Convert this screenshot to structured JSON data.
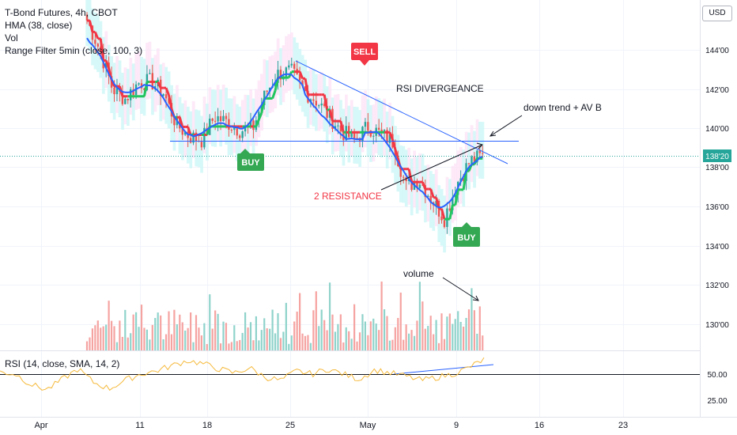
{
  "legend": {
    "symbol": "T-Bond Futures, 4h, CBOT",
    "hma": "HMA (38, close)",
    "vol": "Vol",
    "range_filter": "Range Filter  5min (close, 100, 3)"
  },
  "currency_button": "USD",
  "rsi_legend": "RSI (14, close, SMA, 14, 2)",
  "colors": {
    "up": "#26a69a",
    "down": "#ef5350",
    "hma": "#2962ff",
    "filter_down": "#f23645",
    "filter_up": "#22c55e",
    "band_cyan": "#cdf6f6",
    "band_pink": "#fce4f6",
    "rsi": "#f5b93a",
    "annotation": "#f23645",
    "buy": "#34a853"
  },
  "annotations": {
    "sell": "SELL",
    "buy1": "BUY",
    "buy2": "BUY",
    "rsi_divergence": "RSI DIVERGEANCE",
    "down_trend": "down trend + AV B",
    "resistance": "2 RESISTANCE",
    "volume": "volume"
  },
  "chart_data": {
    "type": "candlestick",
    "symbol": "T-Bond Futures",
    "timeframe": "4h",
    "exchange": "CBOT",
    "last_price": "138'20",
    "y_ticks": [
      "144'00",
      "142'00",
      "140'00",
      "138'00",
      "136'00",
      "134'00",
      "132'00",
      "130'00"
    ],
    "rsi_ticks": [
      "50.00",
      "25.00"
    ],
    "x_ticks": [
      "Apr",
      "11",
      "18",
      "25",
      "May",
      "9",
      "16",
      "23"
    ],
    "horizontal_line": "139'10",
    "close_path": [
      145.5,
      144.0,
      142.0,
      141.5,
      142.3,
      142.4,
      141.8,
      140.2,
      139.6,
      139.4,
      140.6,
      140.3,
      139.9,
      140.0,
      141.8,
      142.8,
      142.9,
      141.9,
      141.4,
      140.6,
      139.8,
      139.4,
      140.1,
      139.7,
      139.3,
      137.0,
      137.4,
      136.4,
      135.4,
      137.2,
      138.3,
      138.6
    ],
    "volume_levels": [
      "low",
      "medium",
      "high"
    ],
    "rsi_path": [
      52,
      50,
      40,
      35,
      45,
      55,
      42,
      36,
      44,
      50,
      53,
      58,
      63,
      60,
      55,
      51,
      56,
      47,
      44,
      53,
      50,
      55,
      50,
      45,
      54,
      51,
      48,
      44,
      47,
      50,
      56,
      64
    ]
  }
}
